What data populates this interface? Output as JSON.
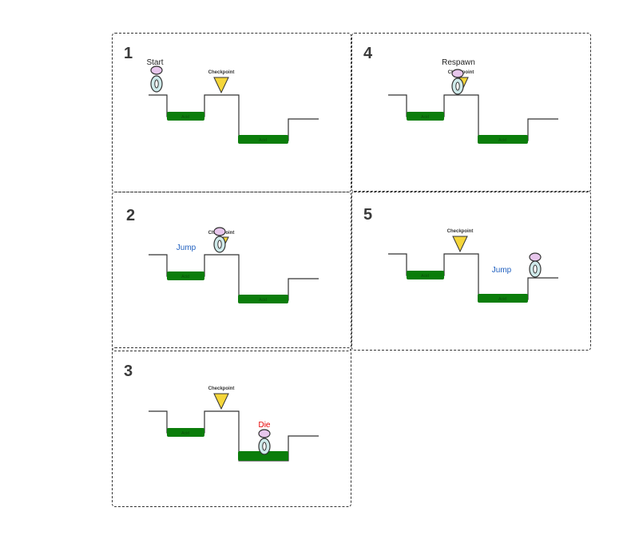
{
  "colors": {
    "border": "#333333",
    "platform": "#0b7d0b",
    "checkpoint": "#f5d63a",
    "player_head": "#e7c6ec",
    "player_body": "#cfeaea",
    "jump_text": "#1f5fbf",
    "die_text": "#e60000"
  },
  "panels": [
    {
      "number": "1",
      "labels": {
        "start": "Start",
        "checkpoint": "Checkpoint"
      }
    },
    {
      "number": "2",
      "labels": {
        "jump": "Jump",
        "checkpoint": "Checkpoint"
      }
    },
    {
      "number": "3",
      "labels": {
        "die": "Die",
        "checkpoint": "Checkpoint"
      }
    },
    {
      "number": "4",
      "labels": {
        "respawn": "Respawn",
        "checkpoint": "Checkpoint"
      }
    },
    {
      "number": "5",
      "labels": {
        "jump": "Jump",
        "checkpoint": "Checkpoint"
      }
    }
  ],
  "platform_label": "Acid"
}
